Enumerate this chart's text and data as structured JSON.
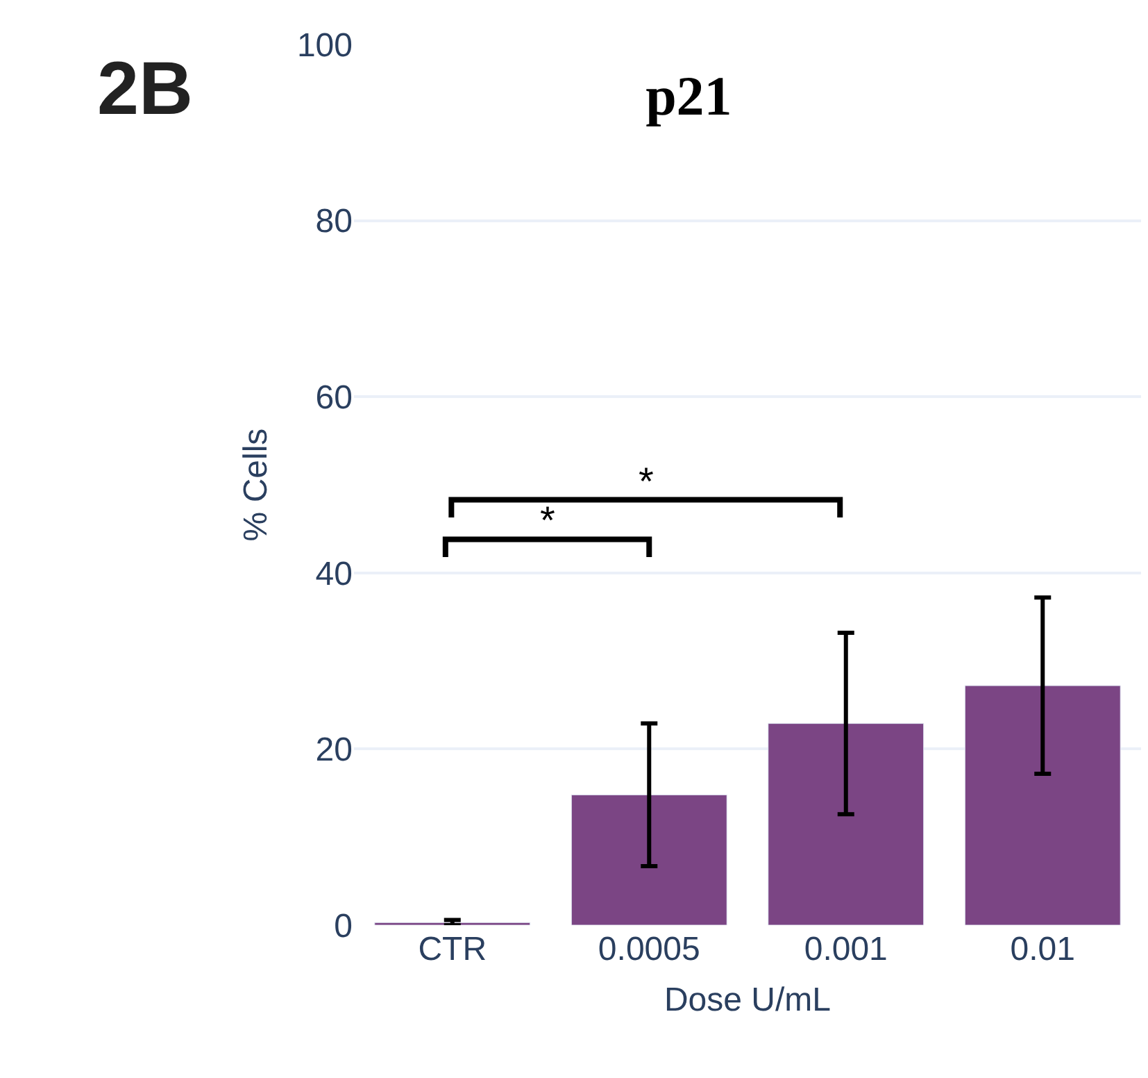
{
  "chart_data": {
    "type": "bar",
    "title": "p21",
    "xlabel": "Dose U/mL",
    "ylabel": "% Cells",
    "categories": [
      "CTR",
      "0.0005",
      "0.001",
      "0.01"
    ],
    "values": [
      0.3,
      14.8,
      22.9,
      27.2
    ],
    "errors": [
      0.3,
      8.1,
      10.3,
      10
    ],
    "color": "#7b4584",
    "ylim": [
      0,
      100
    ],
    "yticks": [
      0,
      20,
      40,
      60,
      80,
      100
    ],
    "grid": "y",
    "legend": false,
    "annotations": [
      "2B",
      "*",
      "*"
    ]
  }
}
